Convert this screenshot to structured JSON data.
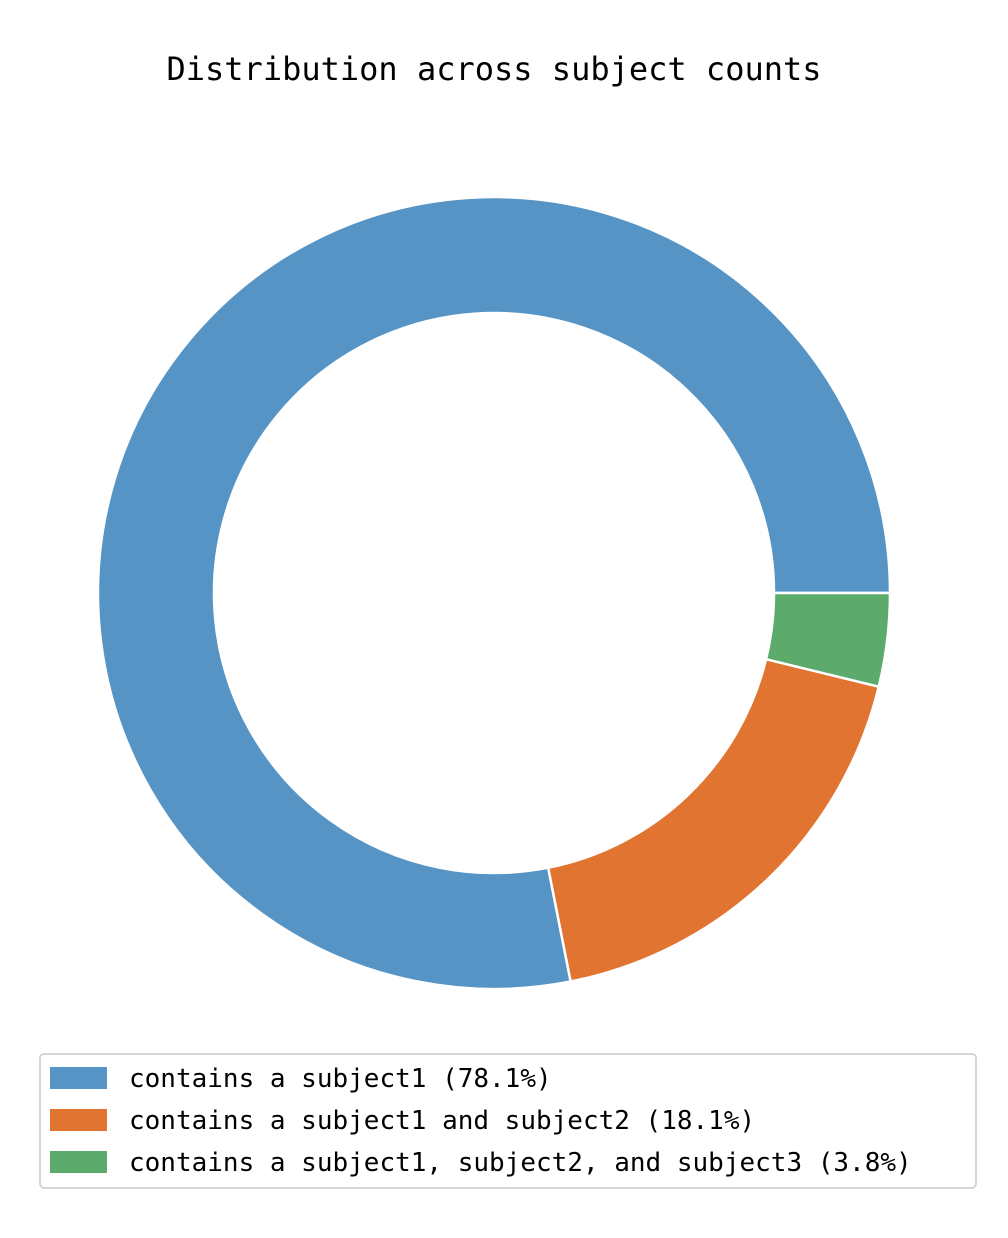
{
  "chart_data": {
    "type": "pie",
    "variant": "donut",
    "title": "Distribution across subject counts",
    "slices": [
      {
        "label": "contains a subject1 (78.1%)",
        "value": 78.1,
        "color": "#5594c5"
      },
      {
        "label": "contains a subject1 and subject2 (18.1%)",
        "value": 18.1,
        "color": "#e07430"
      },
      {
        "label": "contains a subject1, subject2, and subject3 (3.8%)",
        "value": 3.8,
        "color": "#5dab6c"
      }
    ],
    "start_angle": "3 o'clock",
    "direction": "counterclockwise",
    "legend_position": "bottom"
  }
}
